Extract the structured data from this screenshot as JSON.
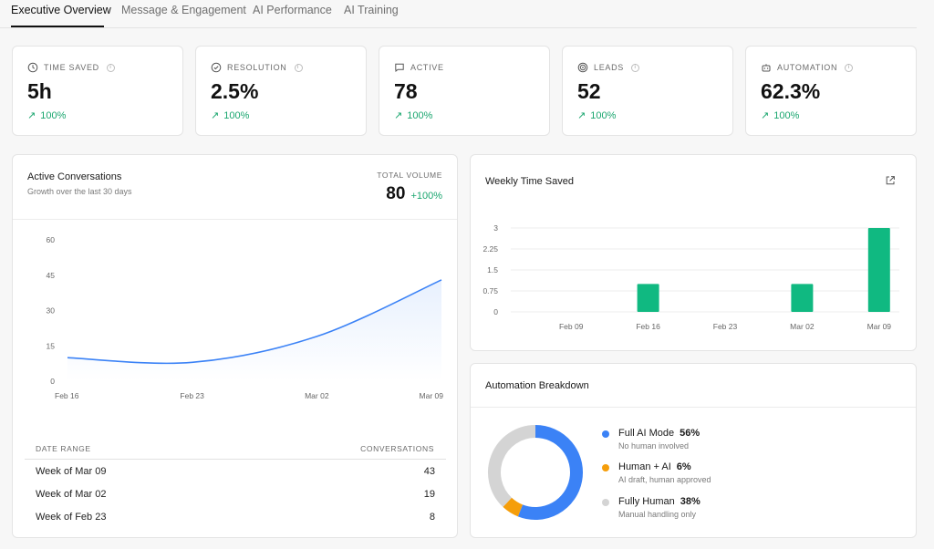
{
  "tabs": [
    {
      "label": "Executive Overview",
      "active": true
    },
    {
      "label": "Message & Engagement",
      "active": false
    },
    {
      "label": "AI Performance",
      "active": false
    },
    {
      "label": "AI Training",
      "active": false
    }
  ],
  "kpis": [
    {
      "icon": "clock-icon",
      "label": "TIME SAVED",
      "value": "5h",
      "change": "100%"
    },
    {
      "icon": "check-circle-icon",
      "label": "RESOLUTION",
      "value": "2.5%",
      "change": "100%"
    },
    {
      "icon": "message-icon",
      "label": "ACTIVE",
      "value": "78",
      "change": "100%"
    },
    {
      "icon": "target-icon",
      "label": "LEADS",
      "value": "52",
      "change": "100%"
    },
    {
      "icon": "robot-icon",
      "label": "AUTOMATION",
      "value": "62.3%",
      "change": "100%"
    }
  ],
  "active_conversations": {
    "title": "Active Conversations",
    "subtitle": "Growth over the last 30 days",
    "total_label": "TOTAL VOLUME",
    "total_value": "80",
    "total_delta": "+100%",
    "table": {
      "headers": [
        "DATE RANGE",
        "CONVERSATIONS"
      ],
      "rows": [
        {
          "range": "Week of Mar 09",
          "count": "43"
        },
        {
          "range": "Week of Mar 02",
          "count": "19"
        },
        {
          "range": "Week of Feb 23",
          "count": "8"
        }
      ]
    }
  },
  "weekly_time_saved": {
    "title": "Weekly Time Saved",
    "external_link_icon": "external-link-icon"
  },
  "automation_breakdown": {
    "title": "Automation Breakdown",
    "items": [
      {
        "name": "Full AI Mode",
        "pct": "56%",
        "desc": "No human involved",
        "color": "#3b82f6"
      },
      {
        "name": "Human + AI",
        "pct": "6%",
        "desc": "AI draft, human approved",
        "color": "#f59e0b"
      },
      {
        "name": "Fully Human",
        "pct": "38%",
        "desc": "Manual handling only",
        "color": "#d4d4d4"
      }
    ]
  },
  "colors": {
    "accent_green": "#10b981",
    "line_blue": "#3b82f6",
    "positive": "#1aa66f"
  },
  "chart_data": [
    {
      "type": "area",
      "title": "Active Conversations",
      "x": [
        "Feb 16",
        "Feb 23",
        "Mar 02",
        "Mar 09"
      ],
      "series": [
        {
          "values": [
            10,
            8,
            19,
            43
          ]
        }
      ],
      "yticks": [
        "0",
        "15",
        "30",
        "45",
        "60"
      ],
      "ylim": [
        0,
        60
      ],
      "grid": false,
      "line_color": "#3b82f6"
    },
    {
      "type": "bar",
      "title": "Weekly Time Saved",
      "categories": [
        "Feb 09",
        "Feb 16",
        "Feb 23",
        "Mar 02",
        "Mar 09"
      ],
      "values": [
        0,
        1,
        0,
        1,
        3
      ],
      "yticks": [
        "0",
        "0.75",
        "1.5",
        "2.25",
        "3"
      ],
      "ylim": [
        0,
        3
      ],
      "grid": true,
      "bar_color": "#10b981"
    },
    {
      "type": "pie",
      "title": "Automation Breakdown",
      "labels": [
        "Full AI Mode",
        "Human + AI",
        "Fully Human"
      ],
      "values": [
        56,
        6,
        38
      ],
      "colors": [
        "#3b82f6",
        "#f59e0b",
        "#d4d4d4"
      ],
      "donut": true
    }
  ]
}
